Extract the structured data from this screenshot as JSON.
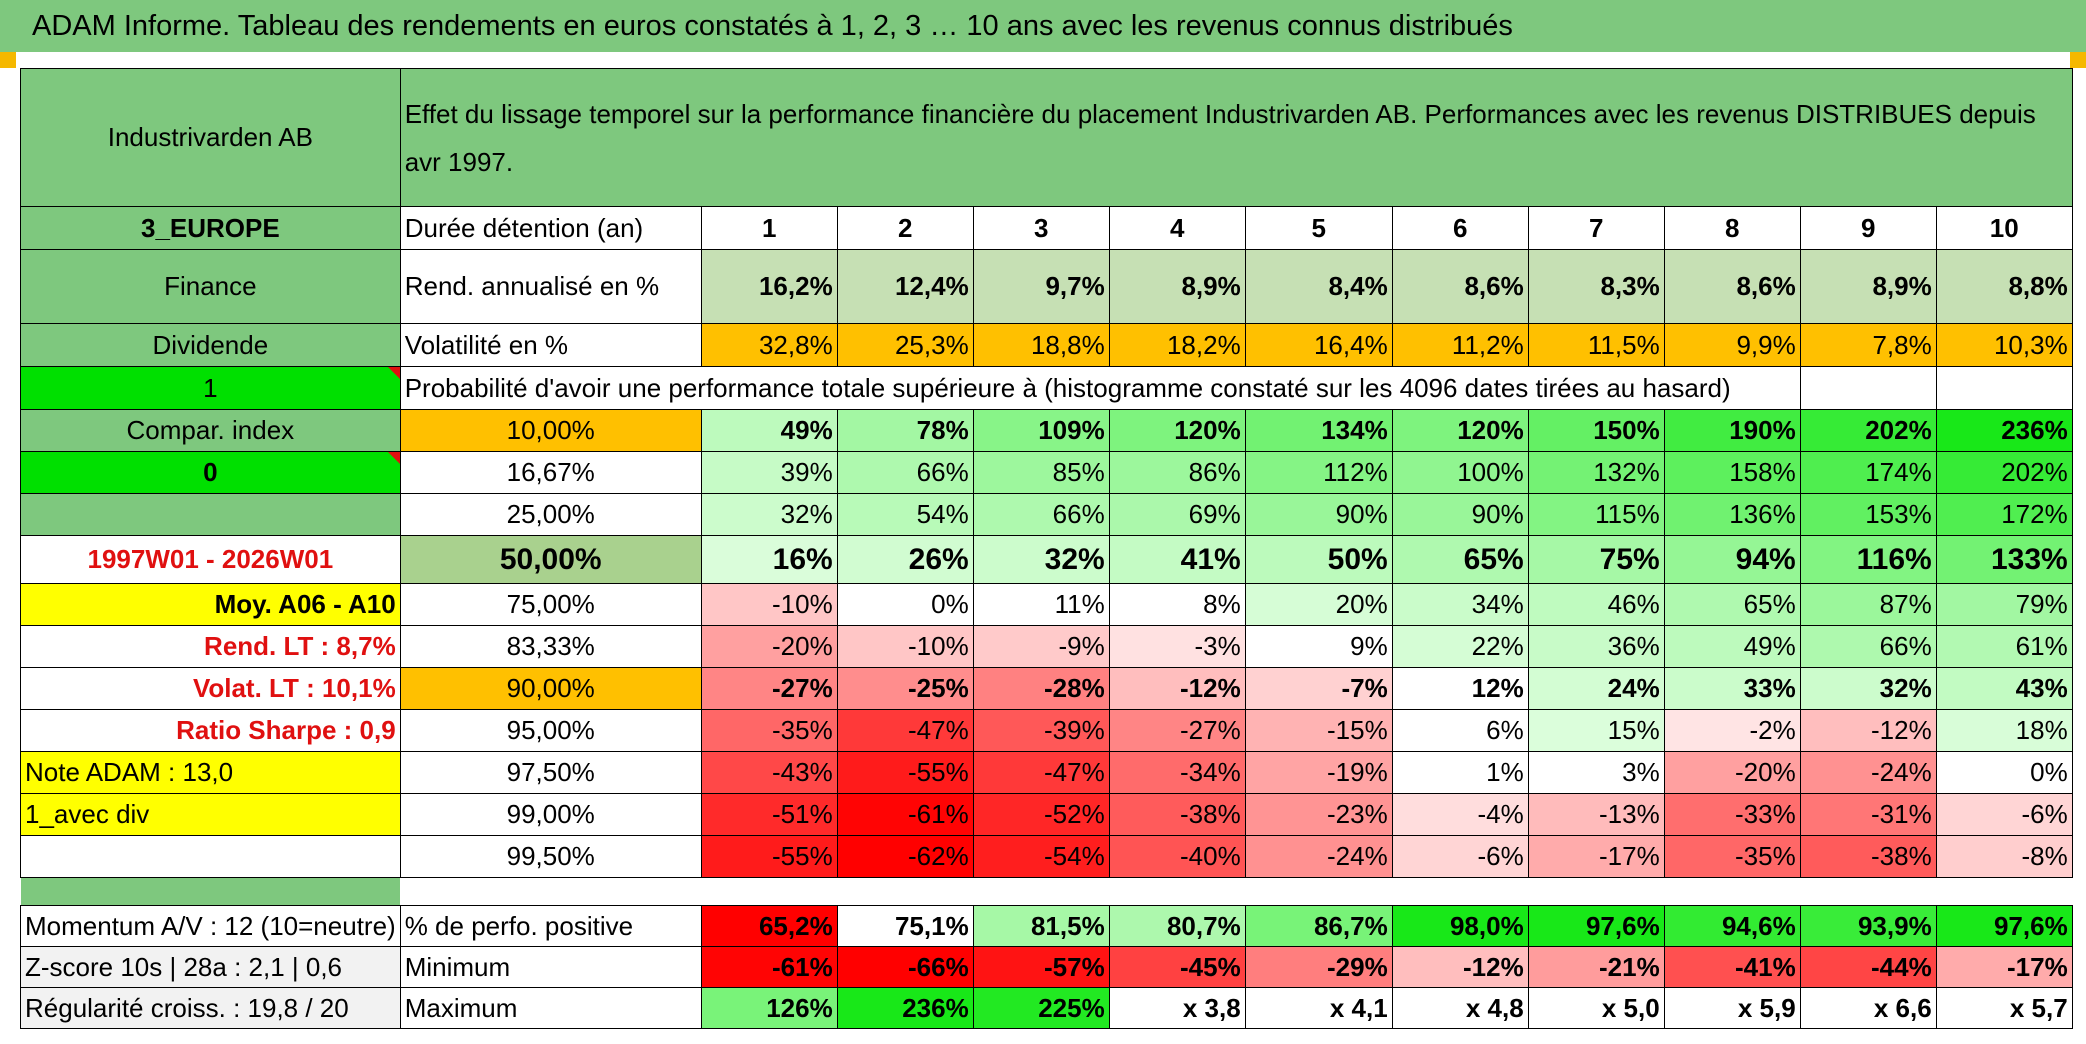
{
  "header": {
    "title": "ADAM Informe. Tableau des rendements en euros constatés à 1, 2, 3 … 10 ans avec les revenus connus distribués"
  },
  "sidebar": {
    "fund_name": "Industrivarden AB",
    "zone": "3_EUROPE",
    "sector": "Finance",
    "income_type": "Dividende",
    "field_1": "1",
    "compar_index": "Compar. index",
    "field_0": "0",
    "period": "1997W01 - 2026W01",
    "moy": "Moy. A06 - A10",
    "rend_lt": "Rend. LT :   8,7%",
    "volat_lt": "Volat. LT :   10,1%",
    "sharpe": "Ratio Sharpe :    0,9",
    "note": "Note ADAM : 13,0",
    "avec_div": "1_avec div",
    "momentum": "Momentum A/V : 12 (10=neutre)",
    "zscore": "Z-score 10s | 28a : 2,1 | 0,6",
    "regularite": "Régularité croiss. : 19,8 / 20"
  },
  "description": "Effet du lissage temporel sur la performance financière du placement Industrivarden AB. Performances avec les revenus DISTRIBUES depuis avr 1997.",
  "labels": {
    "duree": "Durée détention (an)",
    "rend": "Rend. annualisé en %",
    "volat": "Volatilité en %",
    "proba": "Probabilité d'avoir une performance totale supérieure à (histogramme constaté sur les 4096 dates tirées au hasard)",
    "positive": "% de perfo. positive",
    "minimum": "Minimum",
    "maximum": "Maximum"
  },
  "years": [
    "1",
    "2",
    "3",
    "4",
    "5",
    "6",
    "7",
    "8",
    "9",
    "10"
  ],
  "rend": [
    "16,2%",
    "12,4%",
    "9,7%",
    "8,9%",
    "8,4%",
    "8,6%",
    "8,3%",
    "8,6%",
    "8,9%",
    "8,8%"
  ],
  "volat": [
    "32,8%",
    "25,3%",
    "18,8%",
    "18,2%",
    "16,4%",
    "11,2%",
    "11,5%",
    "9,9%",
    "7,8%",
    "10,3%"
  ],
  "prob_rows": [
    {
      "threshold": "10,00%",
      "values": [
        "49%",
        "78%",
        "109%",
        "120%",
        "134%",
        "120%",
        "150%",
        "190%",
        "202%",
        "236%"
      ]
    },
    {
      "threshold": "16,67%",
      "values": [
        "39%",
        "66%",
        "85%",
        "86%",
        "112%",
        "100%",
        "132%",
        "158%",
        "174%",
        "202%"
      ]
    },
    {
      "threshold": "25,00%",
      "values": [
        "32%",
        "54%",
        "66%",
        "69%",
        "90%",
        "90%",
        "115%",
        "136%",
        "153%",
        "172%"
      ]
    },
    {
      "threshold": "50,00%",
      "values": [
        "16%",
        "26%",
        "32%",
        "41%",
        "50%",
        "65%",
        "75%",
        "94%",
        "116%",
        "133%"
      ]
    },
    {
      "threshold": "75,00%",
      "values": [
        "-10%",
        "0%",
        "11%",
        "8%",
        "20%",
        "34%",
        "46%",
        "65%",
        "87%",
        "79%"
      ]
    },
    {
      "threshold": "83,33%",
      "values": [
        "-20%",
        "-10%",
        "-9%",
        "-3%",
        "9%",
        "22%",
        "36%",
        "49%",
        "66%",
        "61%"
      ]
    },
    {
      "threshold": "90,00%",
      "values": [
        "-27%",
        "-25%",
        "-28%",
        "-12%",
        "-7%",
        "12%",
        "24%",
        "33%",
        "32%",
        "43%"
      ]
    },
    {
      "threshold": "95,00%",
      "values": [
        "-35%",
        "-47%",
        "-39%",
        "-27%",
        "-15%",
        "6%",
        "15%",
        "-2%",
        "-12%",
        "18%"
      ]
    },
    {
      "threshold": "97,50%",
      "values": [
        "-43%",
        "-55%",
        "-47%",
        "-34%",
        "-19%",
        "1%",
        "3%",
        "-20%",
        "-24%",
        "0%"
      ]
    },
    {
      "threshold": "99,00%",
      "values": [
        "-51%",
        "-61%",
        "-52%",
        "-38%",
        "-23%",
        "-4%",
        "-13%",
        "-33%",
        "-31%",
        "-6%"
      ]
    },
    {
      "threshold": "99,50%",
      "values": [
        "-55%",
        "-62%",
        "-54%",
        "-40%",
        "-24%",
        "-6%",
        "-17%",
        "-35%",
        "-38%",
        "-8%"
      ]
    }
  ],
  "positive": [
    "65,2%",
    "75,1%",
    "81,5%",
    "80,7%",
    "86,7%",
    "98,0%",
    "97,6%",
    "94,6%",
    "93,9%",
    "97,6%"
  ],
  "minimum": [
    "-61%",
    "-66%",
    "-57%",
    "-45%",
    "-29%",
    "-12%",
    "-21%",
    "-41%",
    "-44%",
    "-17%"
  ],
  "maximum": [
    "126%",
    "236%",
    "225%",
    "x 3,8",
    "x 4,1",
    "x 4,8",
    "x 5,0",
    "x 5,9",
    "x 6,6",
    "x 5,7"
  ],
  "colors": {
    "header_green": "#7ec87e",
    "bright_green": "#00e000",
    "orange": "#ffc000",
    "yellow": "#ffff00",
    "red_text": "#e01010",
    "rend_fill": "#c6e0b4"
  }
}
